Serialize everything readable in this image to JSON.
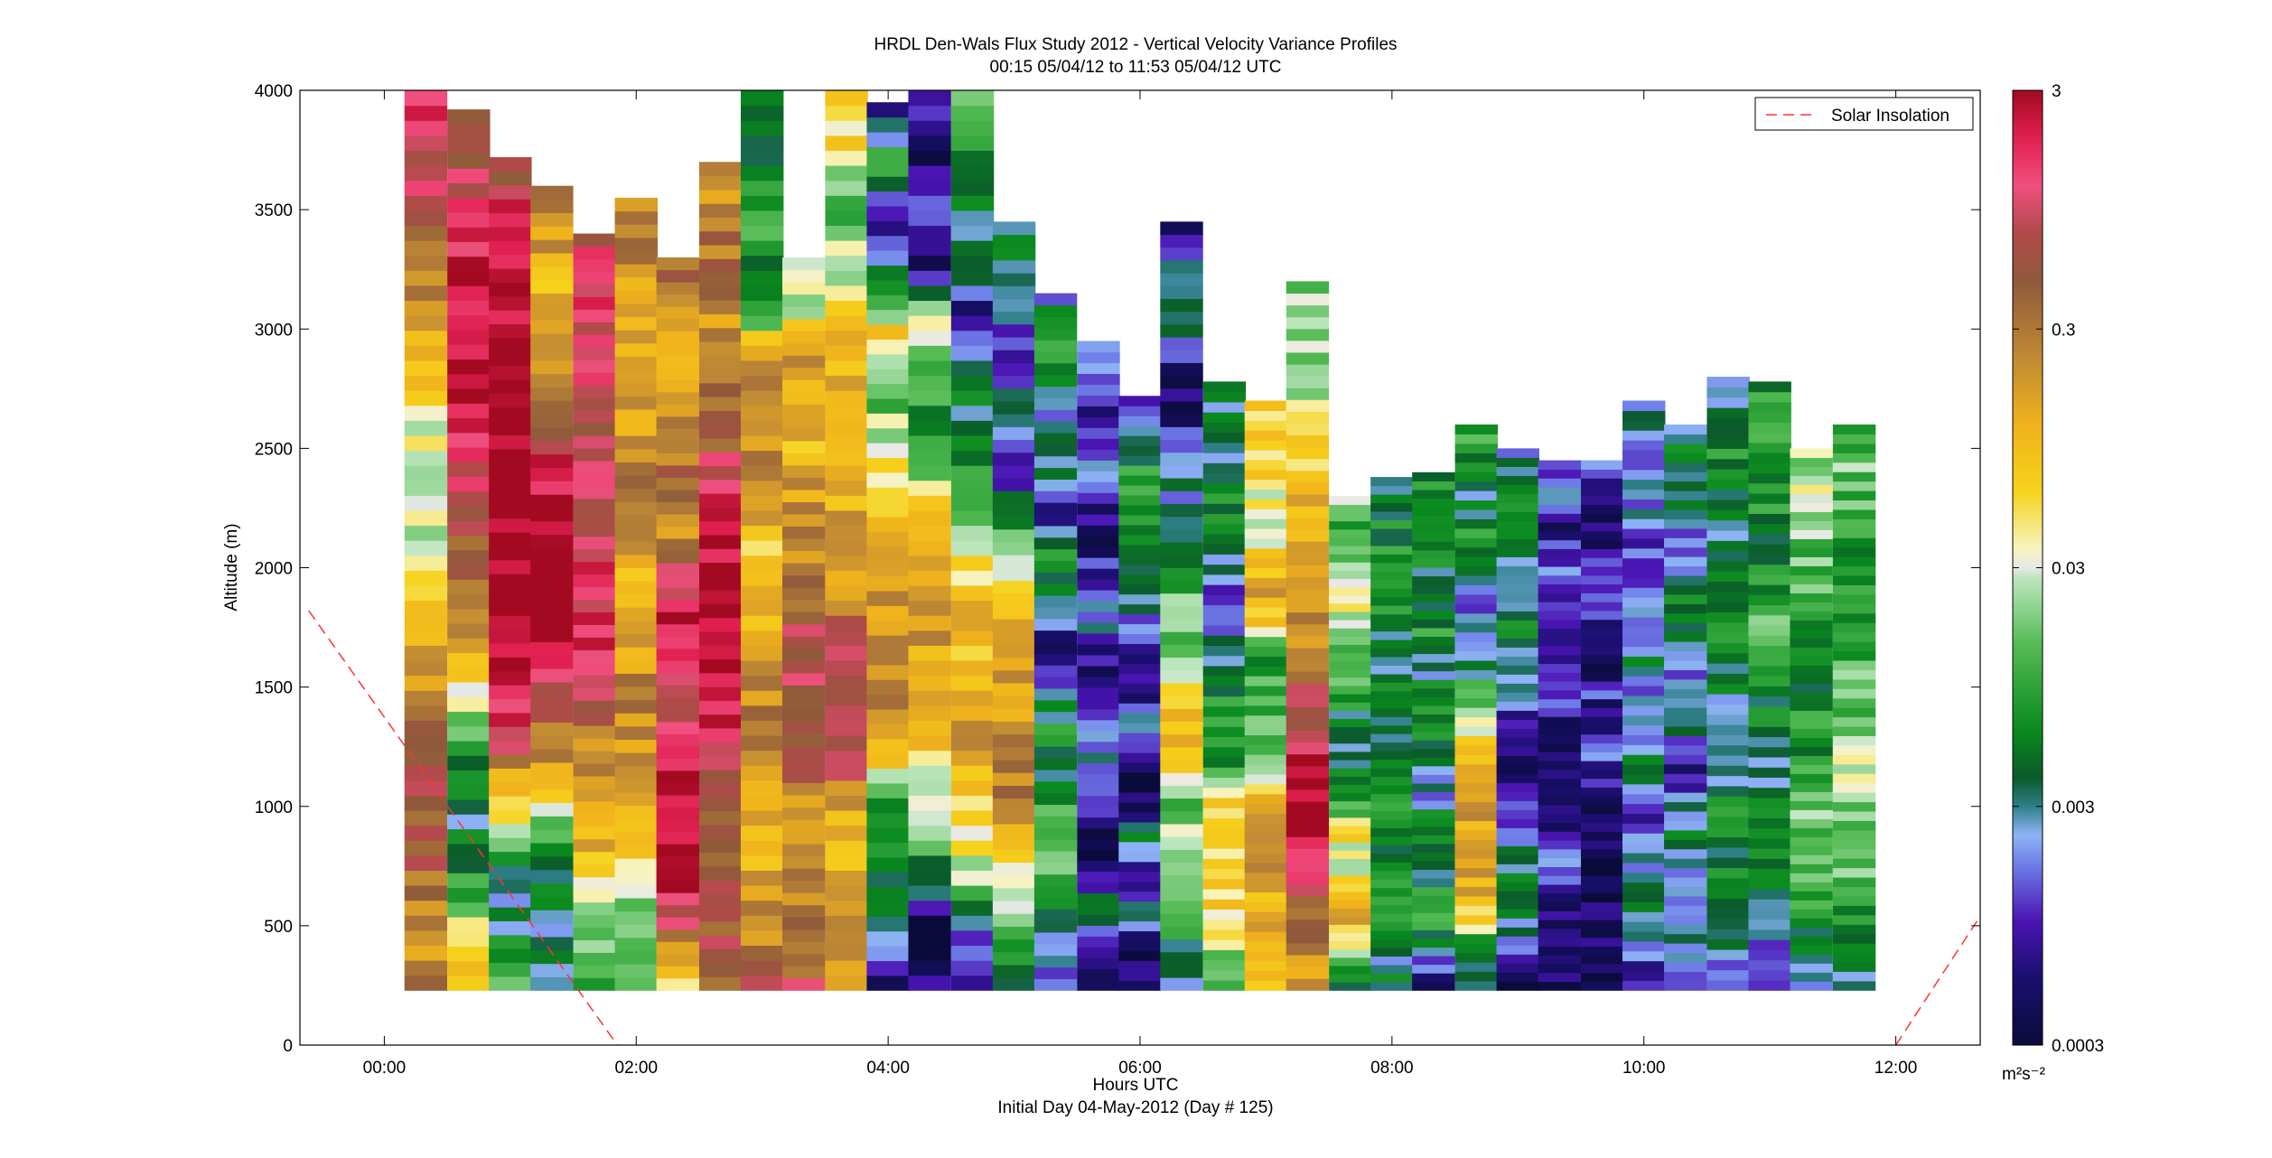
{
  "chart_data": {
    "type": "heatmap",
    "title": "HRDL Den-Wals Flux Study 2012 - Vertical Velocity Variance Profiles",
    "subtitle": "00:15 05/04/12 to 11:53 05/04/12  UTC",
    "xlabel": "Hours UTC",
    "xlabel2": "Initial Day 04-May-2012 (Day # 125)",
    "ylabel": "Altitude (m)",
    "xlim": [
      -0.67,
      12.67
    ],
    "ylim": [
      0,
      4000
    ],
    "x_ticks": [
      0,
      2,
      4,
      6,
      8,
      10,
      12
    ],
    "x_tick_labels": [
      "00:00",
      "02:00",
      "04:00",
      "06:00",
      "08:00",
      "10:00",
      "12:00"
    ],
    "y_ticks": [
      0,
      500,
      1000,
      1500,
      2000,
      2500,
      3000,
      3500,
      4000
    ],
    "y_tick_labels": [
      "0",
      "500",
      "1000",
      "1500",
      "2000",
      "2500",
      "3000",
      "3500",
      "4000"
    ],
    "legend": {
      "entries": [
        "Solar Insolation"
      ],
      "placement": "top-right"
    },
    "solar_insolation": {
      "color": "#ff3333",
      "style": "dashed",
      "points": [
        [
          -0.6,
          1820
        ],
        [
          1.85,
          0
        ],
        [
          12.0,
          0
        ],
        [
          12.67,
          540
        ]
      ]
    },
    "colorbar": {
      "scale": "log",
      "range": [
        0.0003,
        3
      ],
      "ticks": [
        0.0003,
        0.003,
        0.03,
        0.3,
        3
      ],
      "tick_labels": [
        "0.0003",
        "0.003",
        "0.03",
        "0.3",
        "3"
      ],
      "unit_label": "m²s⁻²",
      "stops": [
        [
          0.0,
          "#0b0b3b"
        ],
        [
          0.07,
          "#1a0f6e"
        ],
        [
          0.13,
          "#4b14b4"
        ],
        [
          0.19,
          "#6f7fe8"
        ],
        [
          0.22,
          "#8fb4f5"
        ],
        [
          0.25,
          "#2f7f8a"
        ],
        [
          0.28,
          "#0b5a2b"
        ],
        [
          0.33,
          "#0a8a1f"
        ],
        [
          0.42,
          "#55bb55"
        ],
        [
          0.49,
          "#bfe6bf"
        ],
        [
          0.5,
          "#e8e8e8"
        ],
        [
          0.52,
          "#f7f4c0"
        ],
        [
          0.58,
          "#f6d21c"
        ],
        [
          0.65,
          "#f0b21c"
        ],
        [
          0.72,
          "#c08a35"
        ],
        [
          0.8,
          "#8f5a3a"
        ],
        [
          0.85,
          "#b04a4a"
        ],
        [
          0.9,
          "#f04f7f"
        ],
        [
          0.95,
          "#e02050"
        ],
        [
          1.0,
          "#a30a22"
        ]
      ]
    },
    "time_columns_hours": [
      0.33,
      0.67,
      1.0,
      1.33,
      1.67,
      2.0,
      2.33,
      2.67,
      3.0,
      3.33,
      3.67,
      4.0,
      4.33,
      4.67,
      5.0,
      5.33,
      5.67,
      6.0,
      6.33,
      6.67,
      7.0,
      7.33,
      7.67,
      8.0,
      8.33,
      8.67,
      9.0,
      9.33,
      9.67,
      10.0,
      10.33,
      10.67,
      11.0,
      11.33,
      11.67
    ],
    "profile_tops_m": [
      4000,
      3920,
      3720,
      3600,
      3400,
      3550,
      3300,
      3700,
      4000,
      3300,
      4000,
      3950,
      4000,
      4000,
      3450,
      3150,
      2950,
      2720,
      3450,
      2780,
      2700,
      3200,
      2300,
      2380,
      2400,
      2600,
      2500,
      2450,
      2450,
      2700,
      2600,
      2800,
      2780,
      2500,
      2600
    ],
    "profile_bottom_m": 230,
    "profile_variance_log10": [
      [
        -0.6,
        -0.7,
        -0.4,
        -0.2,
        -0.1,
        -0.5,
        -0.9,
        -1.1,
        -1.6,
        -1.7,
        -1.4,
        -1.0,
        -0.7,
        -0.4,
        -0.2,
        0.1,
        0.2
      ],
      [
        -0.9,
        -1.3,
        -2.2,
        -2.5,
        -2.3,
        -1.7,
        -1.0,
        -0.6,
        -0.3,
        0.0,
        0.3,
        0.4,
        0.4,
        0.3,
        0.1,
        -0.1,
        -0.3
      ],
      [
        -1.8,
        -2.4,
        -2.5,
        -1.7,
        -0.9,
        0.2,
        0.5,
        0.5,
        0.5,
        0.5,
        0.5,
        0.5,
        0.5,
        0.5,
        0.4,
        0.2,
        -0.2
      ],
      [
        -2.5,
        -2.5,
        -2.3,
        -2.0,
        -1.0,
        -0.6,
        0.1,
        0.5,
        0.5,
        0.5,
        0.4,
        0.0,
        -0.6,
        -0.8,
        -1.0,
        -0.7,
        -0.6
      ],
      [
        -2.1,
        -1.8,
        -1.3,
        -1.0,
        -0.9,
        -0.7,
        0.0,
        0.3,
        0.2,
        0.1,
        0.0,
        -0.2,
        -0.1,
        0.0,
        0.1,
        0.1,
        0.0
      ],
      [
        -1.9,
        -2.0,
        -1.6,
        -1.0,
        -0.8,
        -0.7,
        -0.6,
        -0.8,
        -1.0,
        -0.7,
        -0.6,
        -0.7,
        -0.8,
        -0.9,
        -0.8,
        -0.6,
        -0.7
      ],
      [
        -1.2,
        -0.5,
        0.4,
        0.5,
        0.5,
        0.4,
        0.0,
        0.2,
        0.4,
        0.0,
        -0.9,
        -0.4,
        -0.6,
        -0.8,
        -0.9,
        -0.6,
        -0.5
      ],
      [
        -0.4,
        -0.2,
        -0.3,
        -0.5,
        0.0,
        0.2,
        0.4,
        0.5,
        0.5,
        0.3,
        0.0,
        -0.4,
        -0.6,
        -0.8,
        -0.4,
        -0.6,
        -0.7
      ],
      [
        -0.1,
        -0.7,
        -0.9,
        -0.8,
        -0.7,
        -0.6,
        -0.8,
        -1.0,
        -1.1,
        -0.7,
        -0.6,
        -0.5,
        -1.8,
        -2.2,
        -2.0,
        -2.3,
        -2.4
      ],
      [
        -0.2,
        -0.5,
        -0.6,
        -0.6,
        -0.7,
        -0.2,
        -0.1,
        0.0,
        -0.3,
        -0.5,
        -0.7,
        -0.8,
        -1.0,
        -0.9,
        -0.7,
        -1.7,
        -1.5
      ],
      [
        -1.0,
        -0.7,
        -1.0,
        -1.0,
        -0.1,
        0.0,
        -0.2,
        -0.6,
        -0.8,
        -0.9,
        -1.0,
        -0.9,
        -1.2,
        -1.6,
        -1.9,
        -1.3,
        -1.1
      ],
      [
        -3.2,
        -2.6,
        -2.2,
        -2.3,
        -1.1,
        -0.7,
        -0.5,
        -0.8,
        -1.0,
        -1.2,
        -1.5,
        -2.0,
        -1.2,
        -2.5,
        -3.3,
        -2.0,
        -3.0
      ],
      [
        -3.3,
        -3.4,
        -2.3,
        -1.6,
        -1.3,
        -0.8,
        -0.8,
        -0.8,
        -0.9,
        -1.5,
        -2.2,
        -2.0,
        -1.6,
        -3.3,
        -2.5,
        -3.4,
        -3.1
      ],
      [
        -3.3,
        -2.6,
        -1.6,
        -1.3,
        -0.8,
        -0.9,
        -1.0,
        -1.0,
        -1.6,
        -1.8,
        -2.5,
        -2.2,
        -3.3,
        -2.4,
        -2.4,
        -2.2,
        -1.9
      ],
      [
        -2.4,
        -1.9,
        -1.6,
        -1.2,
        -0.6,
        -0.7,
        -0.8,
        -0.8,
        -0.9,
        -1.6,
        -2.2,
        -3.3,
        -2.3,
        -3.2,
        -2.8,
        -2.3,
        -2.5
      ],
      [
        -3.0,
        -2.6,
        -2.2,
        -1.7,
        -1.9,
        -2.4,
        -2.2,
        -2.7,
        -3.3,
        -2.4,
        -2.2,
        -3.1,
        -2.4,
        -2.7,
        -2.3,
        -2.1,
        -2.6
      ],
      [
        -3.3,
        -3.0,
        -2.4,
        -3.4,
        -3.3,
        -2.7,
        -2.6,
        -3.3,
        -3.3,
        -2.6,
        -2.9,
        -3.2,
        -3.3,
        -2.6,
        -3.2,
        -2.9,
        -2.6
      ],
      [
        -3.4,
        -3.3,
        -2.5,
        -3.2,
        -2.4,
        -3.3,
        -3.4,
        -2.6,
        -3.2,
        -3.3,
        -2.7,
        -2.6,
        -2.3,
        -2.2,
        -2.1,
        -2.5,
        -2.9
      ],
      [
        -2.6,
        -2.2,
        -2.0,
        -1.6,
        -1.8,
        -0.9,
        -1.1,
        -1.8,
        -1.6,
        -2.5,
        -2.7,
        -2.5,
        -3.3,
        -3.3,
        -2.4,
        -2.5,
        -3.2
      ],
      [
        -2.1,
        -1.6,
        -1.3,
        -1.1,
        -1.2,
        -1.3,
        -2.2,
        -1.9,
        -2.4,
        -2.5,
        -3.0,
        -2.6,
        -2.4,
        -2.2,
        -2.4,
        -2.5,
        -2.3
      ],
      [
        -1.2,
        -1.0,
        -0.9,
        -0.8,
        -0.7,
        -1.0,
        -1.7,
        -1.9,
        -1.8,
        -2.3,
        -1.2,
        -0.8,
        -1.3,
        -1.4,
        -1.3,
        -1.2,
        -1.3
      ],
      [
        -0.7,
        -0.6,
        -0.2,
        0.4,
        0.5,
        0.3,
        0.0,
        -0.4,
        -0.6,
        -0.8,
        -0.7,
        -1.0,
        -1.2,
        -1.4,
        -1.6,
        -1.7,
        -1.8
      ],
      [
        -2.4,
        -1.6,
        -1.0,
        -0.8,
        -1.6,
        -1.3,
        -2.1,
        -2.4,
        -2.6,
        -2.3,
        -2.0,
        -1.9,
        -1.6,
        -1.3,
        -1.8,
        -2.0,
        -1.7
      ],
      [
        -2.3,
        -2.6,
        -2.1,
        -2.0,
        -2.3,
        -2.2,
        -2.0,
        -2.4,
        -2.5,
        -2.1,
        -2.6,
        -2.4,
        -2.1,
        -2.0,
        -2.2,
        -2.3,
        -2.4
      ],
      [
        -3.3,
        -2.6,
        -2.0,
        -2.2,
        -2.5,
        -2.1,
        -2.7,
        -2.4,
        -2.3,
        -2.1,
        -2.6,
        -2.0,
        -2.5,
        -2.4,
        -2.0,
        -2.3,
        -2.2
      ],
      [
        -2.5,
        -2.6,
        -1.1,
        -0.9,
        -0.7,
        -0.8,
        -0.9,
        -1.2,
        -1.7,
        -2.4,
        -2.6,
        -3.0,
        -2.4,
        -2.1,
        -2.5,
        -2.3,
        -2.0
      ],
      [
        -3.3,
        -2.7,
        -2.5,
        -2.3,
        -2.5,
        -2.9,
        -3.2,
        -3.3,
        -3.0,
        -2.6,
        -2.4,
        -2.2,
        -2.7,
        -2.5,
        -2.3,
        -2.4,
        -2.6
      ],
      [
        -3.3,
        -3.4,
        -3.3,
        -3.0,
        -2.7,
        -3.3,
        -3.4,
        -3.2,
        -3.3,
        -2.9,
        -3.2,
        -3.3,
        -3.0,
        -2.8,
        -3.2,
        -2.6,
        -2.8
      ],
      [
        -3.3,
        -3.4,
        -3.3,
        -3.4,
        -3.3,
        -3.4,
        -3.2,
        -2.9,
        -3.3,
        -3.0,
        -3.3,
        -3.2,
        -2.7,
        -3.1,
        -3.3,
        -3.0,
        -2.9
      ],
      [
        -3.2,
        -2.7,
        -2.3,
        -2.5,
        -2.8,
        -3.0,
        -2.3,
        -2.6,
        -2.8,
        -2.4,
        -2.7,
        -2.9,
        -3.0,
        -2.6,
        -2.8,
        -2.7,
        -2.5
      ],
      [
        -3.0,
        -2.7,
        -2.6,
        -2.9,
        -2.3,
        -2.6,
        -3.2,
        -2.7,
        -2.5,
        -2.8,
        -2.4,
        -2.3,
        -2.6,
        -2.8,
        -2.4,
        -2.2,
        -2.6
      ],
      [
        -2.7,
        -2.6,
        -2.4,
        -2.3,
        -2.2,
        -2.3,
        -2.5,
        -2.6,
        -2.4,
        -2.3,
        -2.1,
        -2.3,
        -2.5,
        -2.4,
        -2.2,
        -2.4,
        -2.5
      ],
      [
        -2.9,
        -2.7,
        -2.5,
        -2.3,
        -2.2,
        -2.4,
        -2.5,
        -2.3,
        -2.2,
        -2.0,
        -1.9,
        -2.2,
        -2.4,
        -2.1,
        -2.3,
        -2.0,
        -2.2
      ],
      [
        -2.6,
        -2.4,
        -2.2,
        -2.0,
        -1.9,
        -1.8,
        -1.9,
        -2.1,
        -2.0,
        -2.2,
        -2.1,
        -2.0,
        -1.8,
        -1.9,
        -1.6,
        -1.5,
        -1.7
      ],
      [
        -2.5,
        -2.3,
        -2.1,
        -1.9,
        -1.8,
        -1.7,
        -1.6,
        -1.7,
        -1.8,
        -1.9,
        -2.0,
        -2.1,
        -2.2,
        -2.1,
        -1.9,
        -1.8,
        -2.0
      ]
    ]
  }
}
